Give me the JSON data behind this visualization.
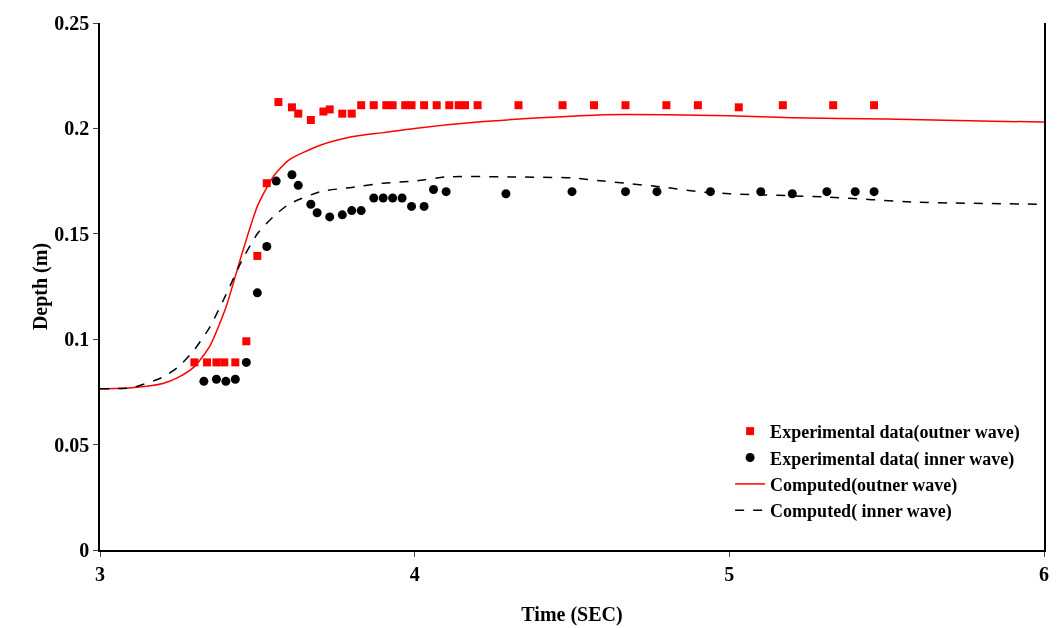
{
  "chart_data": {
    "type": "scatter",
    "xlabel": "Time (SEC)",
    "ylabel": "Depth (m)",
    "xlim": [
      3,
      6
    ],
    "xticks": [
      3,
      4,
      5,
      6
    ],
    "ylim": [
      0,
      0.25
    ],
    "yticks": [
      0,
      0.05,
      0.1,
      0.15,
      0.2,
      0.25
    ],
    "grid": false,
    "legend": "bottom right",
    "series": [
      {
        "name": "Experimental data(outner wave)",
        "marker": "square",
        "color": "#ff0000",
        "x": [
          3.3,
          3.34,
          3.37,
          3.395,
          3.43,
          3.465,
          3.5,
          3.53,
          3.567,
          3.61,
          3.63,
          3.67,
          3.71,
          3.73,
          3.77,
          3.8,
          3.83,
          3.87,
          3.91,
          3.93,
          3.97,
          3.99,
          4.03,
          4.07,
          4.11,
          4.14,
          4.16,
          4.2,
          4.33,
          4.47,
          4.57,
          4.67,
          4.8,
          4.9,
          5.03,
          5.17,
          5.33,
          5.46
        ],
        "values": [
          0.089,
          0.089,
          0.089,
          0.089,
          0.089,
          0.099,
          0.1395,
          0.174,
          0.2125,
          0.21,
          0.207,
          0.204,
          0.208,
          0.209,
          0.207,
          0.207,
          0.211,
          0.211,
          0.211,
          0.211,
          0.211,
          0.211,
          0.211,
          0.211,
          0.211,
          0.211,
          0.211,
          0.211,
          0.211,
          0.211,
          0.211,
          0.211,
          0.211,
          0.211,
          0.21,
          0.211,
          0.211,
          0.211
        ]
      },
      {
        "name": "Experimental data( inner wave)",
        "marker": "circle",
        "color": "#000000",
        "x": [
          3.33,
          3.37,
          3.4,
          3.43,
          3.465,
          3.5,
          3.53,
          3.56,
          3.61,
          3.63,
          3.67,
          3.69,
          3.73,
          3.77,
          3.8,
          3.83,
          3.87,
          3.9,
          3.93,
          3.96,
          3.99,
          4.03,
          4.06,
          4.1,
          4.29,
          4.5,
          4.67,
          4.77,
          4.94,
          5.1,
          5.2,
          5.31,
          5.4,
          5.46
        ],
        "values": [
          0.08,
          0.081,
          0.08,
          0.081,
          0.089,
          0.122,
          0.144,
          0.175,
          0.178,
          0.173,
          0.164,
          0.16,
          0.158,
          0.159,
          0.161,
          0.161,
          0.167,
          0.167,
          0.167,
          0.167,
          0.163,
          0.163,
          0.171,
          0.17,
          0.169,
          0.17,
          0.17,
          0.17,
          0.17,
          0.17,
          0.169,
          0.17,
          0.17,
          0.17
        ]
      },
      {
        "name": "Computed(outner wave)",
        "type": "line",
        "line_style": "solid",
        "marker": "none",
        "color": "#ff0000",
        "x": [
          3.0,
          3.1,
          3.2,
          3.25,
          3.3,
          3.35,
          3.4,
          3.45,
          3.5,
          3.55,
          3.6,
          3.7,
          3.8,
          3.9,
          4.0,
          4.2,
          4.4,
          4.6,
          4.8,
          5.0,
          5.2,
          5.5,
          5.8,
          6.0
        ],
        "values": [
          0.0765,
          0.077,
          0.079,
          0.082,
          0.087,
          0.097,
          0.115,
          0.14,
          0.163,
          0.177,
          0.185,
          0.192,
          0.196,
          0.198,
          0.2,
          0.203,
          0.205,
          0.2065,
          0.2065,
          0.206,
          0.205,
          0.2045,
          0.2035,
          0.203
        ]
      },
      {
        "name": "Computed( inner wave)",
        "type": "line",
        "line_style": "dashed",
        "marker": "none",
        "color": "#000000",
        "x": [
          3.0,
          3.1,
          3.2,
          3.25,
          3.3,
          3.35,
          3.4,
          3.45,
          3.5,
          3.55,
          3.6,
          3.7,
          3.8,
          3.9,
          4.0,
          4.1,
          4.3,
          4.5,
          4.6,
          4.8,
          4.9,
          5.0,
          5.3,
          5.6,
          6.0
        ],
        "values": [
          0.0765,
          0.077,
          0.082,
          0.087,
          0.095,
          0.106,
          0.121,
          0.137,
          0.15,
          0.158,
          0.164,
          0.17,
          0.172,
          0.174,
          0.175,
          0.177,
          0.177,
          0.1765,
          0.175,
          0.172,
          0.17,
          0.169,
          0.1675,
          0.165,
          0.164
        ]
      }
    ]
  }
}
